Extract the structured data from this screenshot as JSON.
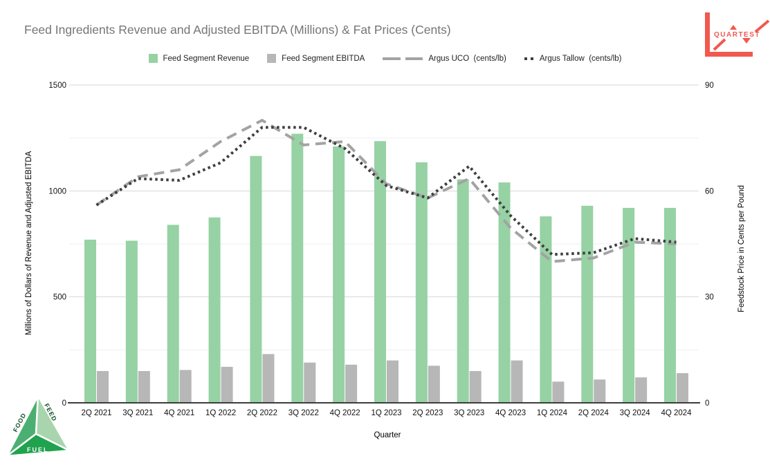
{
  "title": "Feed Ingredients Revenue and Adjusted EBITDA (Millions) & Fat Prices (Cents)",
  "legend": [
    {
      "label": "Feed Segment Revenue",
      "swatch": "green-square",
      "color": "#96d2a4"
    },
    {
      "label": "Feed Segment EBITDA",
      "swatch": "gray-square",
      "color": "#b7b7b7"
    },
    {
      "label": "Argus UCO  (cents/lb)",
      "swatch": "dashed-line",
      "color": "#a3a3a3"
    },
    {
      "label": "Argus Tallow  (cents/lb)",
      "swatch": "dotted-line",
      "color": "#3f3f3f"
    }
  ],
  "chart_data": {
    "type": "bar",
    "subtype": "combo bar + line, dual axis",
    "title": "Feed Ingredients Revenue and Adjusted EBITDA (Millions) & Fat Prices (Cents)",
    "legend_position": "top",
    "grid": "horizontal, minor every 250 left-units / 15 right-units",
    "categories": [
      "2Q 2021",
      "3Q 2021",
      "4Q 2021",
      "1Q 2022",
      "2Q 2022",
      "3Q 2022",
      "4Q 2022",
      "1Q 2023",
      "2Q 2023",
      "3Q 2023",
      "4Q 2023",
      "1Q 2024",
      "2Q 2024",
      "3Q 2024",
      "4Q 2024"
    ],
    "series": [
      {
        "name": "Feed Segment Revenue",
        "kind": "bar",
        "axis": "left",
        "color": "#96d2a4",
        "values": [
          770,
          765,
          840,
          875,
          1165,
          1270,
          1210,
          1235,
          1135,
          1055,
          1040,
          880,
          930,
          920,
          920
        ]
      },
      {
        "name": "Feed Segment EBITDA",
        "kind": "bar",
        "axis": "left",
        "color": "#b7b7b7",
        "values": [
          150,
          150,
          155,
          170,
          230,
          190,
          180,
          200,
          175,
          150,
          200,
          100,
          110,
          120,
          140
        ]
      },
      {
        "name": "Argus UCO (cents/lb)",
        "kind": "line",
        "style": "dashed",
        "axis": "right",
        "color": "#a3a3a3",
        "values": [
          56,
          64,
          66,
          74,
          80,
          73,
          74,
          62,
          58,
          63.5,
          49.5,
          40,
          41,
          45.5,
          45
        ]
      },
      {
        "name": "Argus Tallow (cents/lb)",
        "kind": "line",
        "style": "dotted",
        "axis": "right",
        "color": "#3f3f3f",
        "values": [
          56,
          63.5,
          63,
          68,
          78,
          78,
          72,
          61.5,
          58,
          67,
          53,
          42,
          42.5,
          46.5,
          45.5
        ]
      }
    ],
    "left_axis": {
      "title": "Millions of Dollars of Revenue and Adjusted EBITDA",
      "ticks": [
        0,
        500,
        1000,
        1500
      ],
      "minor_gridlines": [
        250,
        750,
        1250
      ],
      "range": [
        0,
        1500
      ]
    },
    "right_axis": {
      "title": "Feedstock Price in Cents per Pound",
      "ticks": [
        0,
        30,
        60,
        90
      ],
      "range": [
        0,
        90
      ]
    },
    "x_axis": {
      "title": "Quarter"
    }
  },
  "logos": {
    "quartest": {
      "text": "QUARTEST",
      "color": "#f1594f"
    },
    "pyramid": {
      "faces": [
        {
          "label": "FOOD",
          "color": "#4caf72"
        },
        {
          "label": "FEED",
          "color": "#a8d5ad"
        },
        {
          "label": "FUEL",
          "color": "#21a24e"
        }
      ]
    }
  }
}
